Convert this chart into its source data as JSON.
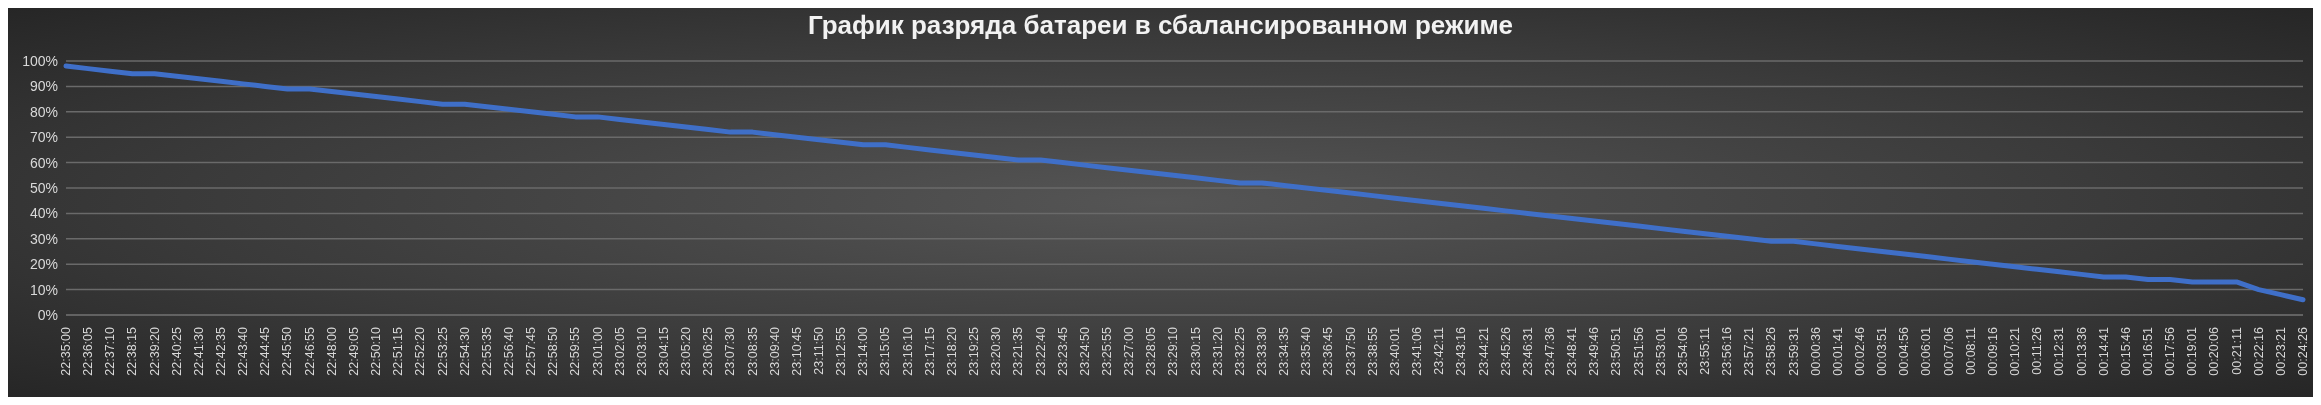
{
  "chart_data": {
    "type": "line",
    "title": "График разряда батареи в сбалансированном режиме",
    "categories": [
      "22:35:00",
      "22:36:05",
      "22:37:10",
      "22:38:15",
      "22:39:20",
      "22:40:25",
      "22:41:30",
      "22:42:35",
      "22:43:40",
      "22:44:45",
      "22:45:50",
      "22:46:55",
      "22:48:00",
      "22:49:05",
      "22:50:10",
      "22:51:15",
      "22:52:20",
      "22:53:25",
      "22:54:30",
      "22:55:35",
      "22:56:40",
      "22:57:45",
      "22:58:50",
      "22:59:55",
      "23:01:00",
      "23:02:05",
      "23:03:10",
      "23:04:15",
      "23:05:20",
      "23:06:25",
      "23:07:30",
      "23:08:35",
      "23:09:40",
      "23:10:45",
      "23:11:50",
      "23:12:55",
      "23:14:00",
      "23:15:05",
      "23:16:10",
      "23:17:15",
      "23:18:20",
      "23:19:25",
      "23:20:30",
      "23:21:35",
      "23:22:40",
      "23:23:45",
      "23:24:50",
      "23:25:55",
      "23:27:00",
      "23:28:05",
      "23:29:10",
      "23:30:15",
      "23:31:20",
      "23:32:25",
      "23:33:30",
      "23:34:35",
      "23:35:40",
      "23:36:45",
      "23:37:50",
      "23:38:55",
      "23:40:01",
      "23:41:06",
      "23:42:11",
      "23:43:16",
      "23:44:21",
      "23:45:26",
      "23:46:31",
      "23:47:36",
      "23:48:41",
      "23:49:46",
      "23:50:51",
      "23:51:56",
      "23:53:01",
      "23:54:06",
      "23:55:11",
      "23:56:16",
      "23:57:21",
      "23:58:26",
      "23:59:31",
      "00:00:36",
      "00:01:41",
      "00:02:46",
      "00:03:51",
      "00:04:56",
      "00:06:01",
      "00:07:06",
      "00:08:11",
      "00:09:16",
      "00:10:21",
      "00:11:26",
      "00:12:31",
      "00:13:36",
      "00:14:41",
      "00:15:46",
      "00:16:51",
      "00:17:56",
      "00:19:01",
      "00:20:06",
      "00:21:11",
      "00:22:16",
      "00:23:21",
      "00:24:26"
    ],
    "series": [
      {
        "color": "#3f6fc8",
        "values": [
          98,
          97,
          96,
          95,
          95,
          94,
          93,
          92,
          91,
          90,
          89,
          89,
          88,
          87,
          86,
          85,
          84,
          83,
          83,
          82,
          81,
          80,
          79,
          78,
          78,
          77,
          76,
          75,
          74,
          73,
          72,
          72,
          71,
          70,
          69,
          68,
          67,
          67,
          66,
          65,
          64,
          63,
          62,
          61,
          61,
          60,
          59,
          58,
          57,
          56,
          55,
          54,
          53,
          52,
          52,
          51,
          50,
          49,
          48,
          47,
          46,
          45,
          44,
          43,
          42,
          41,
          40,
          39,
          38,
          37,
          36,
          35,
          34,
          33,
          32,
          31,
          30,
          29,
          29,
          28,
          27,
          26,
          25,
          24,
          23,
          22,
          21,
          20,
          19,
          18,
          17,
          16,
          15,
          15,
          14,
          14,
          13,
          13,
          13,
          10,
          8,
          6
        ]
      }
    ],
    "ylim": [
      0,
      100
    ],
    "yticks": [
      {
        "value": 0,
        "label": "0%"
      },
      {
        "value": 10,
        "label": "10%"
      },
      {
        "value": 20,
        "label": "20%"
      },
      {
        "value": 30,
        "label": "30%"
      },
      {
        "value": 40,
        "label": "40%"
      },
      {
        "value": 50,
        "label": "50%"
      },
      {
        "value": 60,
        "label": "60%"
      },
      {
        "value": 70,
        "label": "70%"
      },
      {
        "value": 80,
        "label": "80%"
      },
      {
        "value": 90,
        "label": "90%"
      },
      {
        "value": 100,
        "label": "100%"
      }
    ],
    "grid": "y"
  }
}
